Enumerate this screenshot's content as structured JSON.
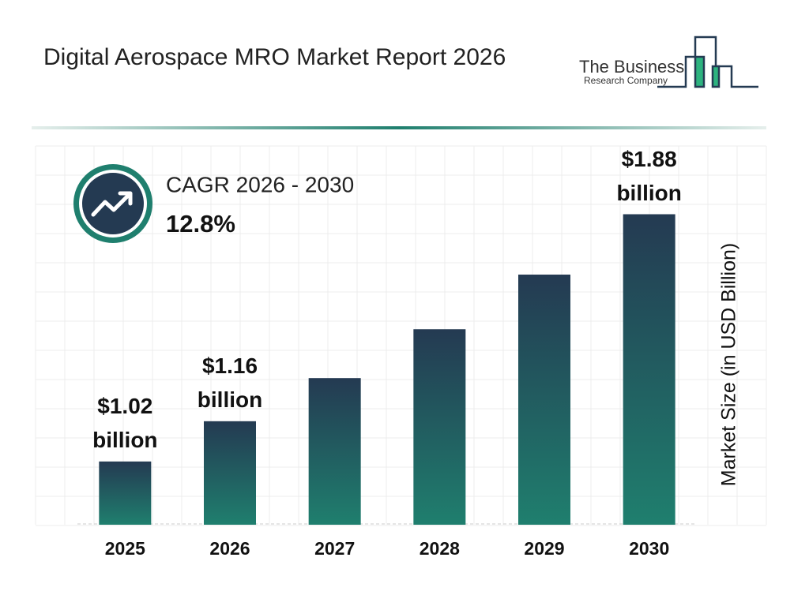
{
  "chart_data": {
    "type": "bar",
    "title": "Digital Aerospace MRO Market Report 2026",
    "logo": {
      "line1": "The Business",
      "line2": "Research Company"
    },
    "cagr": {
      "label": "CAGR 2026 - 2030",
      "value": "12.8%"
    },
    "y_axis_label": "Market Size (in USD Billion)",
    "categories": [
      "2025",
      "2026",
      "2027",
      "2028",
      "2029",
      "2030"
    ],
    "values": [
      1.02,
      1.16,
      1.31,
      1.48,
      1.67,
      1.88
    ],
    "value_labels": [
      "$1.02 billion",
      "$1.16 billion",
      null,
      null,
      null,
      "$1.88 billion"
    ],
    "color_top": "#243a52",
    "color_bottom": "#1f7f6e",
    "ylim": [
      0.8,
      1.95
    ]
  }
}
